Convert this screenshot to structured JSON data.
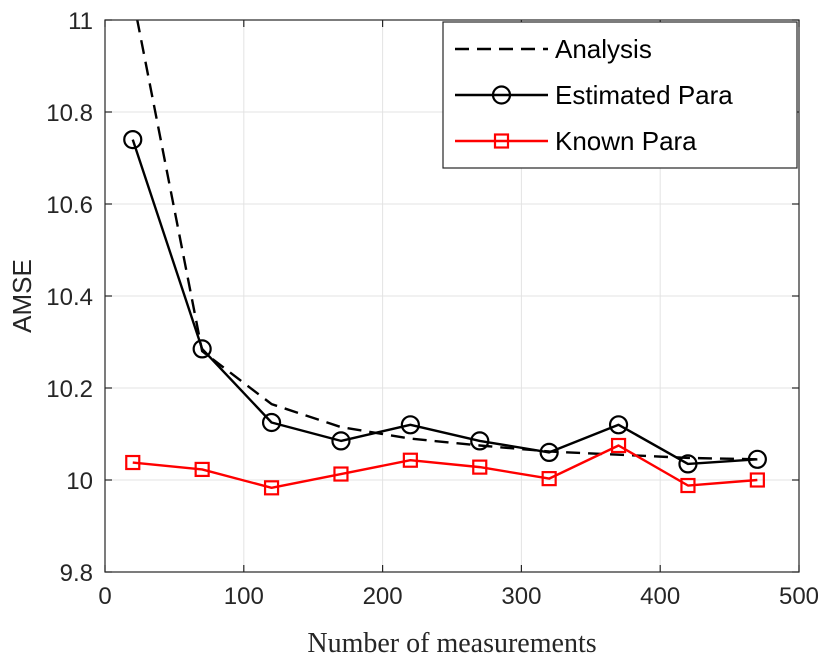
{
  "chart_data": {
    "type": "line",
    "xlabel": "Number of measurements",
    "ylabel": "AMSE",
    "xlim": [
      0,
      500
    ],
    "ylim": [
      9.8,
      11
    ],
    "x_ticks": [
      0,
      100,
      200,
      300,
      400,
      500
    ],
    "y_ticks": [
      9.8,
      10,
      10.2,
      10.4,
      10.6,
      10.8,
      11
    ],
    "x_tick_labels": [
      "0",
      "100",
      "200",
      "300",
      "400",
      "500"
    ],
    "y_tick_labels": [
      "9.8",
      "10",
      "10.2",
      "10.4",
      "10.6",
      "10.8",
      "11"
    ],
    "grid": true,
    "legend_position": "top-right",
    "series": [
      {
        "name": "Analysis",
        "color": "#000000",
        "line_style": "dashed",
        "marker": "none",
        "x": [
          20,
          70,
          120,
          170,
          220,
          270,
          320,
          370,
          420,
          470
        ],
        "values": [
          11.05,
          10.28,
          10.165,
          10.115,
          10.09,
          10.075,
          10.062,
          10.055,
          10.048,
          10.045
        ]
      },
      {
        "name": "Estimated Para",
        "color": "#000000",
        "line_style": "solid",
        "marker": "circle",
        "x": [
          20,
          70,
          120,
          170,
          220,
          270,
          320,
          370,
          420,
          470
        ],
        "values": [
          10.74,
          10.285,
          10.125,
          10.085,
          10.12,
          10.085,
          10.06,
          10.12,
          10.035,
          10.045
        ]
      },
      {
        "name": "Known Para",
        "color": "#ff0000",
        "line_style": "solid",
        "marker": "square",
        "x": [
          20,
          70,
          120,
          170,
          220,
          270,
          320,
          370,
          420,
          470
        ],
        "values": [
          10.038,
          10.023,
          9.983,
          10.013,
          10.043,
          10.028,
          10.003,
          10.075,
          9.988,
          10.0
        ]
      }
    ]
  }
}
